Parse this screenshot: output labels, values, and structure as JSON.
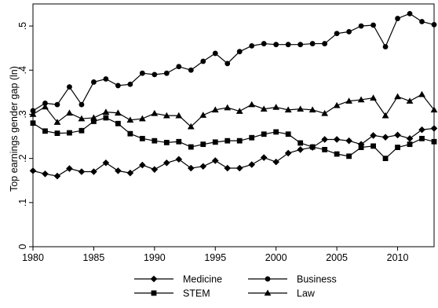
{
  "chart_data": {
    "type": "line",
    "title": "",
    "xlabel": "",
    "ylabel": "Top earnings gender gap (ln)",
    "xlim": [
      1980,
      2013
    ],
    "ylim": [
      0,
      0.55
    ],
    "x_ticks": [
      1980,
      1985,
      1990,
      1995,
      2000,
      2005,
      2010
    ],
    "y_ticks": [
      0,
      0.1,
      0.2,
      0.3,
      0.4,
      0.5
    ],
    "y_tick_labels": [
      "0",
      ".1",
      ".2",
      ".3",
      ".4",
      ".5"
    ],
    "grid": false,
    "legend_position": "bottom",
    "x": [
      1980,
      1981,
      1982,
      1983,
      1984,
      1985,
      1986,
      1987,
      1988,
      1989,
      1990,
      1991,
      1992,
      1993,
      1994,
      1995,
      1996,
      1997,
      1998,
      1999,
      2000,
      2001,
      2002,
      2003,
      2004,
      2005,
      2006,
      2007,
      2008,
      2009,
      2010,
      2011,
      2012,
      2013
    ],
    "series": [
      {
        "name": "Medicine",
        "marker": "diamond",
        "values": [
          0.172,
          0.165,
          0.16,
          0.177,
          0.17,
          0.17,
          0.19,
          0.172,
          0.167,
          0.185,
          0.175,
          0.19,
          0.198,
          0.178,
          0.182,
          0.195,
          0.178,
          0.178,
          0.186,
          0.202,
          0.192,
          0.212,
          0.22,
          0.225,
          0.243,
          0.243,
          0.24,
          0.232,
          0.252,
          0.248,
          0.253,
          0.245,
          0.265,
          0.268
        ]
      },
      {
        "name": "Business",
        "marker": "circle",
        "values": [
          0.308,
          0.325,
          0.322,
          0.362,
          0.322,
          0.373,
          0.38,
          0.365,
          0.368,
          0.393,
          0.39,
          0.393,
          0.408,
          0.4,
          0.42,
          0.438,
          0.415,
          0.442,
          0.455,
          0.46,
          0.458,
          0.458,
          0.458,
          0.46,
          0.46,
          0.483,
          0.487,
          0.5,
          0.502,
          0.453,
          0.517,
          0.528,
          0.51,
          0.503
        ]
      },
      {
        "name": "STEM",
        "marker": "square",
        "values": [
          0.28,
          0.262,
          0.257,
          0.258,
          0.263,
          0.284,
          0.292,
          0.279,
          0.256,
          0.245,
          0.24,
          0.236,
          0.238,
          0.226,
          0.232,
          0.237,
          0.24,
          0.24,
          0.247,
          0.255,
          0.26,
          0.255,
          0.235,
          0.226,
          0.22,
          0.21,
          0.205,
          0.225,
          0.228,
          0.2,
          0.225,
          0.232,
          0.245,
          0.238
        ]
      },
      {
        "name": "Law",
        "marker": "triangle",
        "values": [
          0.3,
          0.317,
          0.282,
          0.303,
          0.29,
          0.292,
          0.305,
          0.303,
          0.287,
          0.29,
          0.302,
          0.297,
          0.297,
          0.272,
          0.298,
          0.31,
          0.315,
          0.307,
          0.322,
          0.312,
          0.316,
          0.31,
          0.312,
          0.31,
          0.302,
          0.32,
          0.33,
          0.333,
          0.337,
          0.297,
          0.34,
          0.33,
          0.345,
          0.31
        ]
      }
    ]
  }
}
